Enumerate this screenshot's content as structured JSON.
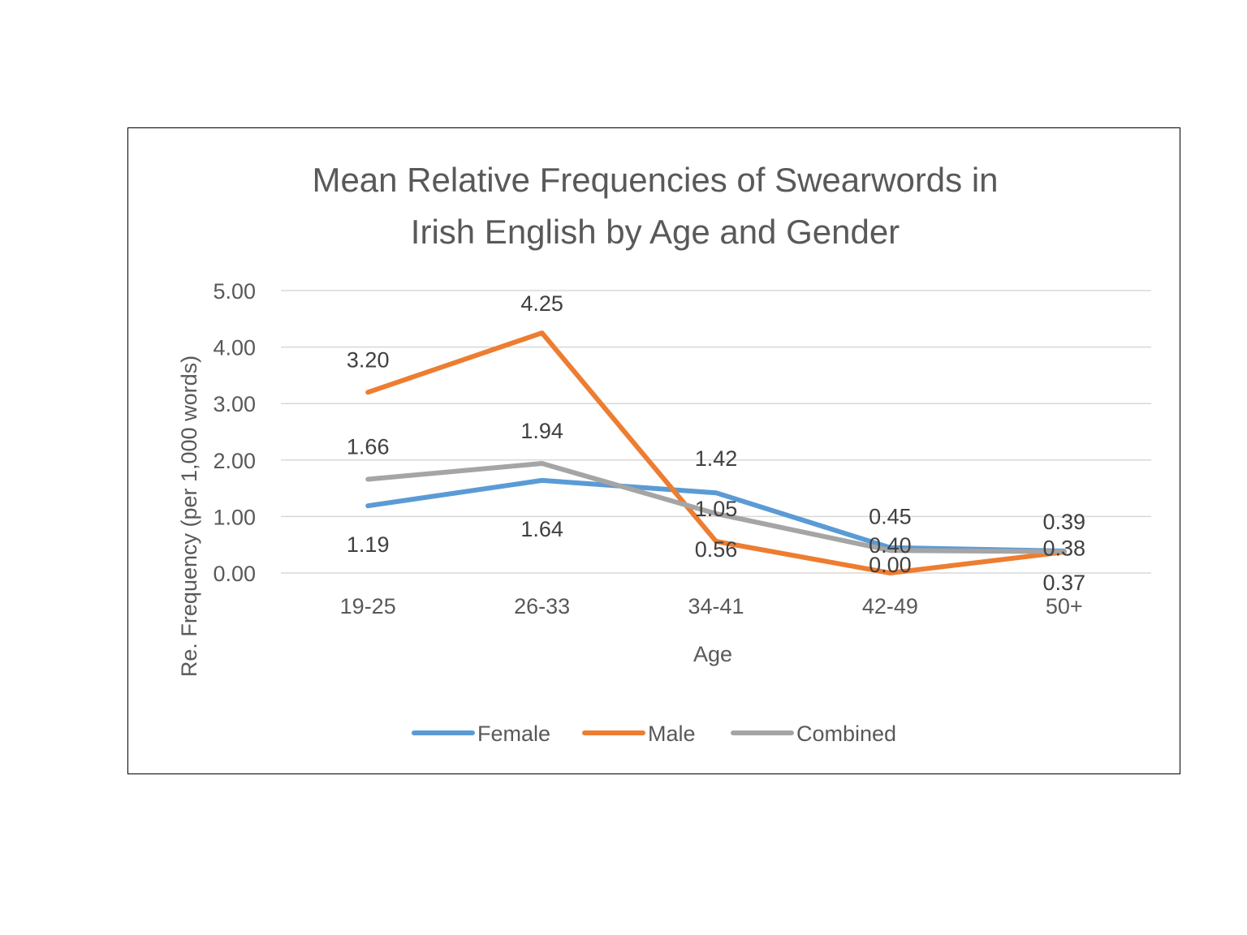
{
  "chart_data": {
    "type": "line",
    "title_lines": [
      "Mean Relative Frequencies of Swearwords in",
      "Irish English by Age and Gender"
    ],
    "xlabel": "Age",
    "ylabel": "Re. Frequency (per 1,000 words)",
    "categories": [
      "19-25",
      "26-33",
      "34-41",
      "42-49",
      "50+"
    ],
    "ylim": [
      0,
      5
    ],
    "yticks": [
      "0.00",
      "1.00",
      "2.00",
      "3.00",
      "4.00",
      "5.00"
    ],
    "grid": true,
    "legend_position": "bottom",
    "series": [
      {
        "name": "Female",
        "color": "#5B9BD5",
        "values": [
          1.19,
          1.64,
          1.42,
          0.45,
          0.39
        ],
        "labels": [
          "1.19",
          "1.64",
          "1.42",
          "0.45",
          "0.39"
        ]
      },
      {
        "name": "Male",
        "color": "#ED7D31",
        "values": [
          3.2,
          4.25,
          0.56,
          0.0,
          0.37
        ],
        "labels": [
          "3.20",
          "4.25",
          "0.56",
          "0.00",
          "0.37"
        ]
      },
      {
        "name": "Combined",
        "color": "#A5A5A5",
        "values": [
          1.66,
          1.94,
          1.05,
          0.4,
          0.38
        ],
        "labels": [
          "1.66",
          "1.94",
          "1.05",
          "0.40",
          "0.38"
        ]
      }
    ]
  }
}
